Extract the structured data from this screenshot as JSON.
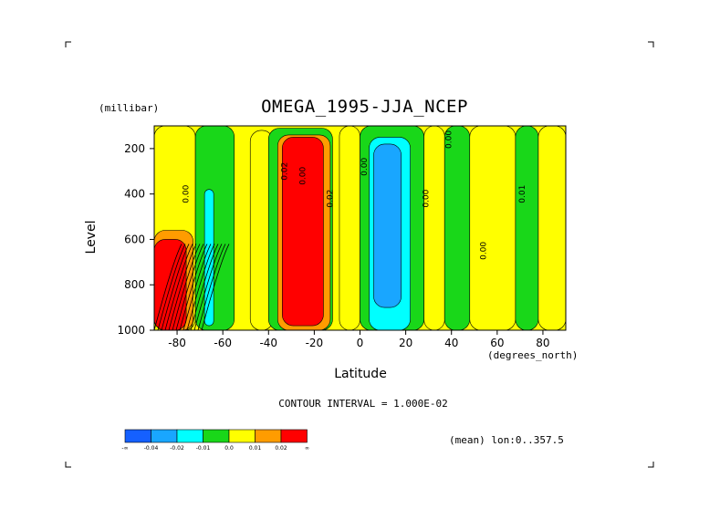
{
  "chart_data": {
    "type": "heatmap",
    "title": "OMEGA_1995-JJA_NCEP",
    "ylabel": "Level",
    "yunit": "(millibar)",
    "xlabel": "Latitude",
    "xunit": "(degrees_north)",
    "xlim": [
      -90,
      90
    ],
    "ylim": [
      1000,
      100
    ],
    "xticks": [
      "-80",
      "-60",
      "-40",
      "-20",
      "0",
      "20",
      "40",
      "60",
      "80"
    ],
    "yticks": [
      "200",
      "400",
      "600",
      "800",
      "1000"
    ],
    "contour_interval": "CONTOUR INTERVAL = 1.000E-02",
    "footnote": "(mean) lon:0..357.5",
    "contour_labels": [
      "0.00",
      "0.02",
      "0.00",
      "0.02",
      "0.00",
      "0.00",
      "0.00",
      "0.00",
      "0.01"
    ],
    "colorbar": {
      "labels": [
        "-∞",
        "-0.04",
        "-0.02",
        "-0.01",
        "0.0",
        "0.01",
        "0.02",
        "∞"
      ],
      "colors": [
        "#1560ff",
        "#19a6ff",
        "#00ffff",
        "#19d719",
        "#ffff00",
        "#ff9c00",
        "#ff0000"
      ]
    },
    "regions": [
      {
        "lat": [
          -90,
          -72
        ],
        "p": [
          100,
          1000
        ],
        "cls": 4
      },
      {
        "lat": [
          -72,
          -55
        ],
        "p": [
          100,
          1000
        ],
        "cls": 3
      },
      {
        "lat": [
          -68,
          -64
        ],
        "p": [
          380,
          980
        ],
        "cls": 2
      },
      {
        "lat": [
          -48,
          -38
        ],
        "p": [
          120,
          1000
        ],
        "cls": 4
      },
      {
        "lat": [
          -40,
          -12
        ],
        "p": [
          110,
          1000
        ],
        "cls": 3
      },
      {
        "lat": [
          -36,
          -13
        ],
        "p": [
          140,
          1000
        ],
        "cls": 5
      },
      {
        "lat": [
          -34,
          -16
        ],
        "p": [
          150,
          980
        ],
        "cls": 6
      },
      {
        "lat": [
          -9,
          0
        ],
        "p": [
          100,
          1000
        ],
        "cls": 4
      },
      {
        "lat": [
          0,
          28
        ],
        "p": [
          100,
          1000
        ],
        "cls": 3
      },
      {
        "lat": [
          4,
          22
        ],
        "p": [
          150,
          1000
        ],
        "cls": 2
      },
      {
        "lat": [
          6,
          18
        ],
        "p": [
          180,
          900
        ],
        "cls": 1
      },
      {
        "lat": [
          28,
          37
        ],
        "p": [
          100,
          1000
        ],
        "cls": 4
      },
      {
        "lat": [
          37,
          48
        ],
        "p": [
          100,
          1000
        ],
        "cls": 3
      },
      {
        "lat": [
          48,
          68
        ],
        "p": [
          100,
          1000
        ],
        "cls": 4
      },
      {
        "lat": [
          68,
          78
        ],
        "p": [
          100,
          1000
        ],
        "cls": 3
      },
      {
        "lat": [
          78,
          90
        ],
        "p": [
          100,
          1000
        ],
        "cls": 4
      },
      {
        "lat": [
          -90,
          -73
        ],
        "p": [
          560,
          1000
        ],
        "cls": 5
      },
      {
        "lat": [
          -90,
          -76
        ],
        "p": [
          600,
          1000
        ],
        "cls": 6
      }
    ]
  }
}
